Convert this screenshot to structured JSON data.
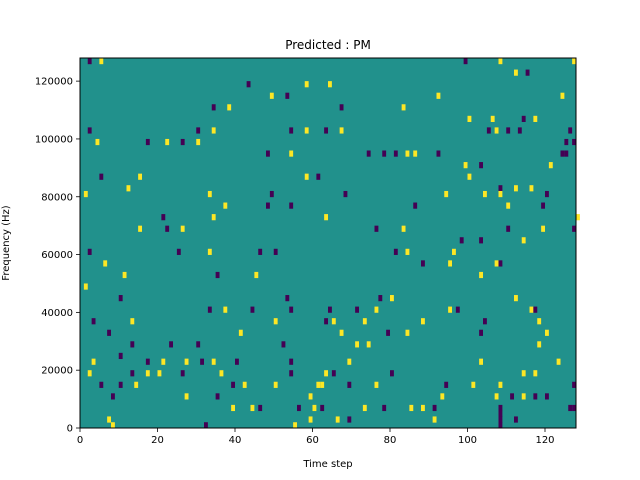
{
  "chart_data": {
    "type": "heatmap",
    "title": "Predicted : PM",
    "xlabel": "Time step",
    "ylabel": "Frequency (Hz)",
    "xlim": [
      0,
      128
    ],
    "ylim": [
      0,
      128000
    ],
    "x_ticks": [
      0,
      20,
      40,
      60,
      80,
      100,
      120
    ],
    "y_ticks": [
      0,
      20000,
      40000,
      60000,
      80000,
      100000,
      120000
    ],
    "x_tick_labels": [
      "0",
      "20",
      "40",
      "60",
      "80",
      "100",
      "120"
    ],
    "y_tick_labels": [
      "0",
      "20000",
      "40000",
      "60000",
      "80000",
      "100000",
      "120000"
    ],
    "n_time_steps": 128,
    "n_freq_bins": 64,
    "colormap": "viridis",
    "background_value": 0,
    "colors": {
      "high": "#fde725",
      "mid": "#21918c",
      "low": "#440154"
    },
    "cells_legend": "t = time step, f = frequency bin (bin height 2000 Hz), v = 1 high / -1 low",
    "cells": [
      {
        "t": 2,
        "f": 63,
        "v": -1
      },
      {
        "t": 5,
        "f": 63,
        "v": 1
      },
      {
        "t": 99,
        "f": 63,
        "v": -1
      },
      {
        "t": 108,
        "f": 63,
        "v": 1
      },
      {
        "t": 127,
        "f": 63,
        "v": 1
      },
      {
        "t": 112,
        "f": 61,
        "v": 1
      },
      {
        "t": 115,
        "f": 61,
        "v": -1
      },
      {
        "t": 43,
        "f": 59,
        "v": -1
      },
      {
        "t": 58,
        "f": 59,
        "v": 1
      },
      {
        "t": 64,
        "f": 59,
        "v": 1
      },
      {
        "t": 49,
        "f": 57,
        "v": 1
      },
      {
        "t": 53,
        "f": 57,
        "v": -1
      },
      {
        "t": 92,
        "f": 57,
        "v": 1
      },
      {
        "t": 124,
        "f": 57,
        "v": 1
      },
      {
        "t": 34,
        "f": 55,
        "v": -1
      },
      {
        "t": 38,
        "f": 55,
        "v": 1
      },
      {
        "t": 67,
        "f": 55,
        "v": -1
      },
      {
        "t": 83,
        "f": 55,
        "v": 1
      },
      {
        "t": 100,
        "f": 53,
        "v": 1
      },
      {
        "t": 106,
        "f": 53,
        "v": 1
      },
      {
        "t": 114,
        "f": 53,
        "v": -1
      },
      {
        "t": 117,
        "f": 53,
        "v": 1
      },
      {
        "t": 2,
        "f": 51,
        "v": -1
      },
      {
        "t": 30,
        "f": 51,
        "v": -1
      },
      {
        "t": 34,
        "f": 51,
        "v": 1
      },
      {
        "t": 54,
        "f": 51,
        "v": -1
      },
      {
        "t": 58,
        "f": 51,
        "v": 1
      },
      {
        "t": 63,
        "f": 51,
        "v": -1
      },
      {
        "t": 67,
        "f": 51,
        "v": 1
      },
      {
        "t": 105,
        "f": 51,
        "v": -1
      },
      {
        "t": 107,
        "f": 51,
        "v": 1
      },
      {
        "t": 110,
        "f": 51,
        "v": -1
      },
      {
        "t": 113,
        "f": 51,
        "v": -1
      },
      {
        "t": 126,
        "f": 51,
        "v": -1
      },
      {
        "t": 4,
        "f": 49,
        "v": 1
      },
      {
        "t": 17,
        "f": 49,
        "v": -1
      },
      {
        "t": 22,
        "f": 49,
        "v": 1
      },
      {
        "t": 26,
        "f": 49,
        "v": -1
      },
      {
        "t": 30,
        "f": 49,
        "v": 1
      },
      {
        "t": 125,
        "f": 49,
        "v": -1
      },
      {
        "t": 127,
        "f": 49,
        "v": -1
      },
      {
        "t": 48,
        "f": 47,
        "v": -1
      },
      {
        "t": 54,
        "f": 47,
        "v": 1
      },
      {
        "t": 74,
        "f": 47,
        "v": -1
      },
      {
        "t": 78,
        "f": 47,
        "v": -1
      },
      {
        "t": 81,
        "f": 47,
        "v": -1
      },
      {
        "t": 84,
        "f": 47,
        "v": 1
      },
      {
        "t": 86,
        "f": 47,
        "v": 1
      },
      {
        "t": 92,
        "f": 47,
        "v": -1
      },
      {
        "t": 124,
        "f": 47,
        "v": -1
      },
      {
        "t": 125,
        "f": 47,
        "v": -1
      },
      {
        "t": 99,
        "f": 45,
        "v": 1
      },
      {
        "t": 103,
        "f": 45,
        "v": -1
      },
      {
        "t": 121,
        "f": 45,
        "v": 1
      },
      {
        "t": 5,
        "f": 43,
        "v": -1
      },
      {
        "t": 15,
        "f": 43,
        "v": 1
      },
      {
        "t": 58,
        "f": 43,
        "v": 1
      },
      {
        "t": 61,
        "f": 43,
        "v": -1
      },
      {
        "t": 100,
        "f": 43,
        "v": 1
      },
      {
        "t": 12,
        "f": 41,
        "v": 1
      },
      {
        "t": 108,
        "f": 41,
        "v": -1
      },
      {
        "t": 112,
        "f": 41,
        "v": 1
      },
      {
        "t": 116,
        "f": 41,
        "v": 1
      },
      {
        "t": 1,
        "f": 40,
        "v": 1
      },
      {
        "t": 33,
        "f": 40,
        "v": 1
      },
      {
        "t": 49,
        "f": 40,
        "v": -1
      },
      {
        "t": 68,
        "f": 40,
        "v": -1
      },
      {
        "t": 94,
        "f": 40,
        "v": 1
      },
      {
        "t": 104,
        "f": 40,
        "v": 1
      },
      {
        "t": 108,
        "f": 40,
        "v": 1
      },
      {
        "t": 120,
        "f": 40,
        "v": -1
      },
      {
        "t": 37,
        "f": 38,
        "v": 1
      },
      {
        "t": 48,
        "f": 38,
        "v": -1
      },
      {
        "t": 54,
        "f": 38,
        "v": -1
      },
      {
        "t": 86,
        "f": 38,
        "v": -1
      },
      {
        "t": 110,
        "f": 38,
        "v": 1
      },
      {
        "t": 119,
        "f": 38,
        "v": -1
      },
      {
        "t": 21,
        "f": 36,
        "v": -1
      },
      {
        "t": 34,
        "f": 36,
        "v": 1
      },
      {
        "t": 63,
        "f": 36,
        "v": 1
      },
      {
        "t": 128,
        "f": 36,
        "v": 1
      },
      {
        "t": 15,
        "f": 34,
        "v": 1
      },
      {
        "t": 22,
        "f": 34,
        "v": -1
      },
      {
        "t": 26,
        "f": 34,
        "v": 1
      },
      {
        "t": 76,
        "f": 34,
        "v": -1
      },
      {
        "t": 83,
        "f": 34,
        "v": 1
      },
      {
        "t": 110,
        "f": 34,
        "v": -1
      },
      {
        "t": 119,
        "f": 34,
        "v": 1
      },
      {
        "t": 127,
        "f": 34,
        "v": -1
      },
      {
        "t": 98,
        "f": 32,
        "v": -1
      },
      {
        "t": 103,
        "f": 32,
        "v": -1
      },
      {
        "t": 114,
        "f": 32,
        "v": 1
      },
      {
        "t": 2,
        "f": 30,
        "v": -1
      },
      {
        "t": 25,
        "f": 30,
        "v": -1
      },
      {
        "t": 33,
        "f": 30,
        "v": 1
      },
      {
        "t": 46,
        "f": 30,
        "v": -1
      },
      {
        "t": 50,
        "f": 30,
        "v": -1
      },
      {
        "t": 81,
        "f": 30,
        "v": -1
      },
      {
        "t": 84,
        "f": 30,
        "v": 1
      },
      {
        "t": 96,
        "f": 30,
        "v": 1
      },
      {
        "t": 6,
        "f": 28,
        "v": 1
      },
      {
        "t": 88,
        "f": 28,
        "v": -1
      },
      {
        "t": 95,
        "f": 28,
        "v": 1
      },
      {
        "t": 107,
        "f": 28,
        "v": 1
      },
      {
        "t": 108,
        "f": 28,
        "v": -1
      },
      {
        "t": 11,
        "f": 26,
        "v": 1
      },
      {
        "t": 35,
        "f": 26,
        "v": -1
      },
      {
        "t": 45,
        "f": 26,
        "v": 1
      },
      {
        "t": 103,
        "f": 26,
        "v": 1
      },
      {
        "t": 1,
        "f": 24,
        "v": 1
      },
      {
        "t": 10,
        "f": 22,
        "v": -1
      },
      {
        "t": 53,
        "f": 22,
        "v": -1
      },
      {
        "t": 77,
        "f": 22,
        "v": -1
      },
      {
        "t": 80,
        "f": 22,
        "v": 1
      },
      {
        "t": 112,
        "f": 22,
        "v": 1
      },
      {
        "t": 33,
        "f": 20,
        "v": -1
      },
      {
        "t": 37,
        "f": 20,
        "v": 1
      },
      {
        "t": 44,
        "f": 20,
        "v": -1
      },
      {
        "t": 54,
        "f": 20,
        "v": -1
      },
      {
        "t": 64,
        "f": 20,
        "v": -1
      },
      {
        "t": 71,
        "f": 20,
        "v": -1
      },
      {
        "t": 76,
        "f": 20,
        "v": 1
      },
      {
        "t": 95,
        "f": 20,
        "v": 1
      },
      {
        "t": 97,
        "f": 20,
        "v": -1
      },
      {
        "t": 116,
        "f": 20,
        "v": 1
      },
      {
        "t": 117,
        "f": 20,
        "v": -1
      },
      {
        "t": 3,
        "f": 18,
        "v": -1
      },
      {
        "t": 13,
        "f": 18,
        "v": 1
      },
      {
        "t": 50,
        "f": 18,
        "v": 1
      },
      {
        "t": 63,
        "f": 18,
        "v": -1
      },
      {
        "t": 65,
        "f": 18,
        "v": 1
      },
      {
        "t": 73,
        "f": 18,
        "v": 1
      },
      {
        "t": 88,
        "f": 18,
        "v": 1
      },
      {
        "t": 104,
        "f": 18,
        "v": -1
      },
      {
        "t": 118,
        "f": 18,
        "v": 1
      },
      {
        "t": 7,
        "f": 16,
        "v": -1
      },
      {
        "t": 41,
        "f": 16,
        "v": 1
      },
      {
        "t": 67,
        "f": 16,
        "v": 1
      },
      {
        "t": 79,
        "f": 16,
        "v": -1
      },
      {
        "t": 84,
        "f": 16,
        "v": 1
      },
      {
        "t": 103,
        "f": 16,
        "v": -1
      },
      {
        "t": 120,
        "f": 16,
        "v": 1
      },
      {
        "t": 13,
        "f": 14,
        "v": -1
      },
      {
        "t": 23,
        "f": 14,
        "v": -1
      },
      {
        "t": 30,
        "f": 14,
        "v": -1
      },
      {
        "t": 52,
        "f": 14,
        "v": -1
      },
      {
        "t": 71,
        "f": 14,
        "v": 1
      },
      {
        "t": 74,
        "f": 14,
        "v": 1
      },
      {
        "t": 118,
        "f": 14,
        "v": 1
      },
      {
        "t": 10,
        "f": 12,
        "v": -1
      },
      {
        "t": 3,
        "f": 11,
        "v": 1
      },
      {
        "t": 17,
        "f": 11,
        "v": -1
      },
      {
        "t": 21,
        "f": 11,
        "v": 1
      },
      {
        "t": 27,
        "f": 11,
        "v": 1
      },
      {
        "t": 31,
        "f": 11,
        "v": -1
      },
      {
        "t": 34,
        "f": 11,
        "v": 1
      },
      {
        "t": 40,
        "f": 11,
        "v": -1
      },
      {
        "t": 54,
        "f": 11,
        "v": -1
      },
      {
        "t": 69,
        "f": 11,
        "v": 1
      },
      {
        "t": 103,
        "f": 11,
        "v": 1
      },
      {
        "t": 123,
        "f": 11,
        "v": 1
      },
      {
        "t": 2,
        "f": 9,
        "v": 1
      },
      {
        "t": 13,
        "f": 9,
        "v": -1
      },
      {
        "t": 17,
        "f": 9,
        "v": 1
      },
      {
        "t": 20,
        "f": 9,
        "v": 1
      },
      {
        "t": 26,
        "f": 9,
        "v": -1
      },
      {
        "t": 36,
        "f": 9,
        "v": 1
      },
      {
        "t": 54,
        "f": 9,
        "v": -1
      },
      {
        "t": 63,
        "f": 9,
        "v": 1
      },
      {
        "t": 65,
        "f": 9,
        "v": -1
      },
      {
        "t": 80,
        "f": 9,
        "v": -1
      },
      {
        "t": 114,
        "f": 9,
        "v": 1
      },
      {
        "t": 117,
        "f": 9,
        "v": 1
      },
      {
        "t": 5,
        "f": 7,
        "v": -1
      },
      {
        "t": 10,
        "f": 7,
        "v": -1
      },
      {
        "t": 14,
        "f": 7,
        "v": 1
      },
      {
        "t": 39,
        "f": 7,
        "v": -1
      },
      {
        "t": 42,
        "f": 7,
        "v": 1
      },
      {
        "t": 50,
        "f": 7,
        "v": 1
      },
      {
        "t": 69,
        "f": 7,
        "v": -1
      },
      {
        "t": 76,
        "f": 7,
        "v": 1
      },
      {
        "t": 94,
        "f": 7,
        "v": -1
      },
      {
        "t": 101,
        "f": 7,
        "v": 1
      },
      {
        "t": 108,
        "f": 7,
        "v": 1
      },
      {
        "t": 59,
        "f": 5,
        "v": 1
      },
      {
        "t": 93,
        "f": 5,
        "v": 1
      },
      {
        "t": 107,
        "f": 5,
        "v": 1
      },
      {
        "t": 111,
        "f": 5,
        "v": -1
      },
      {
        "t": 114,
        "f": 5,
        "v": 1
      },
      {
        "t": 117,
        "f": 5,
        "v": -1
      },
      {
        "t": 120,
        "f": 5,
        "v": -1
      },
      {
        "t": 8,
        "f": 5,
        "v": -1
      },
      {
        "t": 27,
        "f": 5,
        "v": 1
      },
      {
        "t": 35,
        "f": 5,
        "v": -1
      },
      {
        "t": 56,
        "f": 3,
        "v": -1
      },
      {
        "t": 62,
        "f": 3,
        "v": -1
      },
      {
        "t": 73,
        "f": 3,
        "v": 1
      },
      {
        "t": 78,
        "f": 3,
        "v": -1
      },
      {
        "t": 85,
        "f": 3,
        "v": 1
      },
      {
        "t": 91,
        "f": 3,
        "v": -1
      },
      {
        "t": 59,
        "f": 1,
        "v": 1
      },
      {
        "t": 66,
        "f": 1,
        "v": 1
      },
      {
        "t": 69,
        "f": 1,
        "v": -1
      },
      {
        "t": 91,
        "f": 1,
        "v": 1
      },
      {
        "t": 112,
        "f": 1,
        "v": -1
      },
      {
        "t": 61,
        "f": 7,
        "v": 1
      },
      {
        "t": 62,
        "f": 7,
        "v": 1
      },
      {
        "t": 39,
        "f": 3,
        "v": 1
      },
      {
        "t": 44,
        "f": 3,
        "v": 1
      },
      {
        "t": 46,
        "f": 3,
        "v": -1
      },
      {
        "t": 60,
        "f": 3,
        "v": 1
      },
      {
        "t": 88,
        "f": 3,
        "v": 1
      },
      {
        "t": 108,
        "f": 3,
        "v": -1
      },
      {
        "t": 126,
        "f": 3,
        "v": -1
      },
      {
        "t": 127,
        "f": 3,
        "v": -1
      },
      {
        "t": 7,
        "f": 1,
        "v": 1
      },
      {
        "t": 8,
        "f": 0,
        "v": 1
      },
      {
        "t": 32,
        "f": 0,
        "v": -1
      },
      {
        "t": 55,
        "f": 0,
        "v": 1
      },
      {
        "t": 108,
        "f": 0,
        "v": -1
      },
      {
        "t": 108,
        "f": 2,
        "v": -1
      },
      {
        "t": 108,
        "f": 1,
        "v": -1
      },
      {
        "t": 127,
        "f": 7,
        "v": -1
      }
    ]
  }
}
